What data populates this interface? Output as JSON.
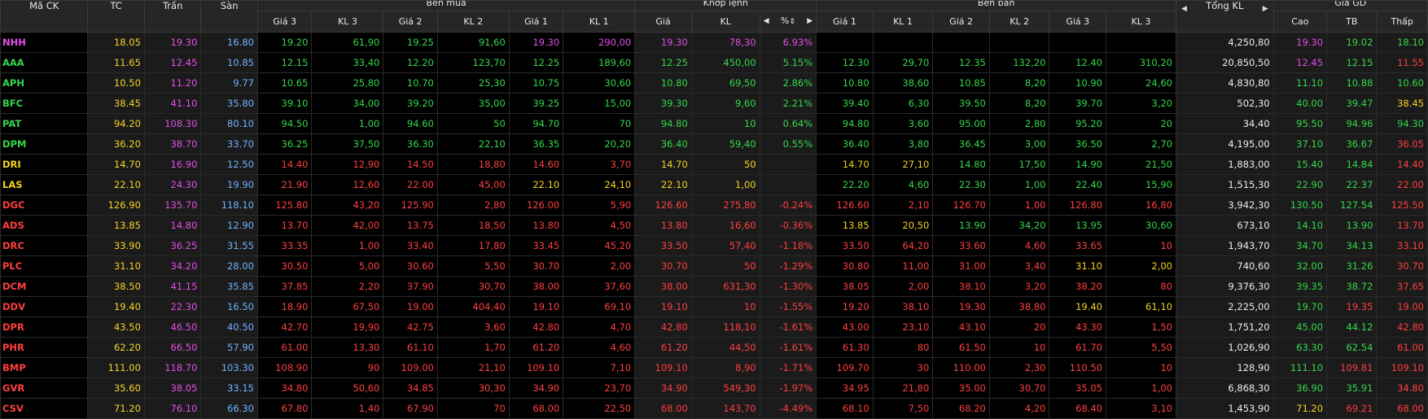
{
  "headers": {
    "symbol": "Mã CK",
    "ref": "TC",
    "ceil": "Trần",
    "floor": "Sàn",
    "buy_group": "Bên mua",
    "match_group": "Khớp lệnh",
    "sell_group": "Bên bán",
    "total": "Tổng KL",
    "range_group": "Giá GD",
    "buy_cols": [
      "Giá 3",
      "KL 3",
      "Giá 2",
      "KL 2",
      "Giá 1",
      "KL 1"
    ],
    "match_cols": [
      "Giá",
      "KL",
      "%"
    ],
    "sell_cols": [
      "Giá 1",
      "KL 1",
      "Giá 2",
      "KL 2",
      "Giá 3",
      "KL 3"
    ],
    "range_cols": [
      "Cao",
      "TB",
      "Thấp"
    ]
  },
  "icons": {
    "arrow_left": "◀",
    "arrow_right": "▶",
    "sort": "⇕"
  },
  "colors": {
    "up": "#33d84b",
    "down": "#ff3f3f",
    "reference": "#f5d323",
    "ceiling": "#e24ee8",
    "floor": "#6fb2ff"
  },
  "rows": [
    {
      "sym": "NHH",
      "tc": "18.05",
      "tran": "19.30",
      "san": "16.80",
      "b3": "19.20",
      "bk3": "61,90",
      "b2": "19.25",
      "bk2": "91,60",
      "b1": "19.30",
      "bk1": "290,00",
      "mp": "19.30",
      "mk": "78,30",
      "pct": "6.93%",
      "s1": "",
      "sk1": "",
      "s2": "",
      "sk2": "",
      "s3": "",
      "sk3": "",
      "tot": "4,250,80",
      "hi": "19.30",
      "tb": "19.02",
      "lo": "18.10",
      "c": {
        "sym": "ceil",
        "b3": "up",
        "b2": "up",
        "b1": "ceil",
        "m": "ceil",
        "s1": "up",
        "s2": "up",
        "s3": "up",
        "hi": "ceil",
        "tb": "up",
        "lo": "up"
      }
    },
    {
      "sym": "AAA",
      "tc": "11.65",
      "tran": "12.45",
      "san": "10.85",
      "b3": "12.15",
      "bk3": "33,40",
      "b2": "12.20",
      "bk2": "123,70",
      "b1": "12.25",
      "bk1": "189,60",
      "mp": "12.25",
      "mk": "450,00",
      "pct": "5.15%",
      "s1": "12.30",
      "sk1": "29,70",
      "s2": "12.35",
      "sk2": "132,20",
      "s3": "12.40",
      "sk3": "310,20",
      "tot": "20,850,50",
      "hi": "12.45",
      "tb": "12.15",
      "lo": "11.55",
      "c": {
        "sym": "up",
        "b3": "up",
        "b2": "up",
        "b1": "up",
        "m": "up",
        "s1": "up",
        "s2": "up",
        "s3": "up",
        "hi": "ceil",
        "tb": "up",
        "lo": "down"
      }
    },
    {
      "sym": "APH",
      "tc": "10.50",
      "tran": "11.20",
      "san": "9.77",
      "b3": "10.65",
      "bk3": "25,80",
      "b2": "10.70",
      "bk2": "25,30",
      "b1": "10.75",
      "bk1": "30,60",
      "mp": "10.80",
      "mk": "69,50",
      "pct": "2.86%",
      "s1": "10.80",
      "sk1": "38,60",
      "s2": "10.85",
      "sk2": "8,20",
      "s3": "10.90",
      "sk3": "24,60",
      "tot": "4,830,80",
      "hi": "11.10",
      "tb": "10.88",
      "lo": "10.60",
      "c": {
        "sym": "up",
        "b3": "up",
        "b2": "up",
        "b1": "up",
        "m": "up",
        "s1": "up",
        "s2": "up",
        "s3": "up",
        "hi": "up",
        "tb": "up",
        "lo": "up"
      }
    },
    {
      "sym": "BFC",
      "tc": "38.45",
      "tran": "41.10",
      "san": "35.80",
      "b3": "39.10",
      "bk3": "34,00",
      "b2": "39.20",
      "bk2": "35,00",
      "b1": "39.25",
      "bk1": "15,00",
      "mp": "39.30",
      "mk": "9,60",
      "pct": "2.21%",
      "s1": "39.40",
      "sk1": "6,30",
      "s2": "39.50",
      "sk2": "8,20",
      "s3": "39.70",
      "sk3": "3,20",
      "tot": "502,30",
      "hi": "40.00",
      "tb": "39.47",
      "lo": "38.45",
      "c": {
        "sym": "up",
        "b3": "up",
        "b2": "up",
        "b1": "up",
        "m": "up",
        "s1": "up",
        "s2": "up",
        "s3": "up",
        "hi": "up",
        "tb": "up",
        "lo": "ref"
      }
    },
    {
      "sym": "PAT",
      "tc": "94.20",
      "tran": "108.30",
      "san": "80.10",
      "b3": "94.50",
      "bk3": "1,00",
      "b2": "94.60",
      "bk2": "50",
      "b1": "94.70",
      "bk1": "70",
      "mp": "94.80",
      "mk": "10",
      "pct": "0.64%",
      "s1": "94.80",
      "sk1": "3,60",
      "s2": "95.00",
      "sk2": "2,80",
      "s3": "95.20",
      "sk3": "20",
      "tot": "34,40",
      "hi": "95.50",
      "tb": "94.96",
      "lo": "94.30",
      "c": {
        "sym": "up",
        "b3": "up",
        "b2": "up",
        "b1": "up",
        "m": "up",
        "s1": "up",
        "s2": "up",
        "s3": "up",
        "hi": "up",
        "tb": "up",
        "lo": "up"
      }
    },
    {
      "sym": "DPM",
      "tc": "36.20",
      "tran": "38.70",
      "san": "33.70",
      "b3": "36.25",
      "bk3": "37,50",
      "b2": "36.30",
      "bk2": "22,10",
      "b1": "36.35",
      "bk1": "20,20",
      "mp": "36.40",
      "mk": "59,40",
      "pct": "0.55%",
      "s1": "36.40",
      "sk1": "3,80",
      "s2": "36.45",
      "sk2": "3,00",
      "s3": "36.50",
      "sk3": "2,70",
      "tot": "4,195,00",
      "hi": "37.10",
      "tb": "36.67",
      "lo": "36.05",
      "c": {
        "sym": "up",
        "b3": "up",
        "b2": "up",
        "b1": "up",
        "m": "up",
        "s1": "up",
        "s2": "up",
        "s3": "up",
        "hi": "up",
        "tb": "up",
        "lo": "down"
      }
    },
    {
      "sym": "DRI",
      "tc": "14.70",
      "tran": "16.90",
      "san": "12.50",
      "b3": "14.40",
      "bk3": "12,90",
      "b2": "14.50",
      "bk2": "18,80",
      "b1": "14.60",
      "bk1": "3,70",
      "mp": "14.70",
      "mk": "50",
      "pct": "",
      "s1": "14.70",
      "sk1": "27,10",
      "s2": "14.80",
      "sk2": "17,50",
      "s3": "14.90",
      "sk3": "21,50",
      "tot": "1,883,00",
      "hi": "15.40",
      "tb": "14.84",
      "lo": "14.40",
      "c": {
        "sym": "ref",
        "b3": "down",
        "b2": "down",
        "b1": "down",
        "m": "ref",
        "s1": "ref",
        "s2": "up",
        "s3": "up",
        "hi": "up",
        "tb": "up",
        "lo": "down"
      }
    },
    {
      "sym": "LAS",
      "tc": "22.10",
      "tran": "24.30",
      "san": "19.90",
      "b3": "21.90",
      "bk3": "12,60",
      "b2": "22.00",
      "bk2": "45,00",
      "b1": "22.10",
      "bk1": "24,10",
      "mp": "22.10",
      "mk": "1,00",
      "pct": "",
      "s1": "22.20",
      "sk1": "4,60",
      "s2": "22.30",
      "sk2": "1,00",
      "s3": "22.40",
      "sk3": "15,90",
      "tot": "1,515,30",
      "hi": "22.90",
      "tb": "22.37",
      "lo": "22.00",
      "c": {
        "sym": "ref",
        "b3": "down",
        "b2": "down",
        "b1": "ref",
        "m": "ref",
        "s1": "up",
        "s2": "up",
        "s3": "up",
        "hi": "up",
        "tb": "up",
        "lo": "down"
      }
    },
    {
      "sym": "DGC",
      "tc": "126.90",
      "tran": "135.70",
      "san": "118.10",
      "b3": "125.80",
      "bk3": "43,20",
      "b2": "125.90",
      "bk2": "2,80",
      "b1": "126.00",
      "bk1": "5,90",
      "mp": "126.60",
      "mk": "275,80",
      "pct": "-0.24%",
      "s1": "126.60",
      "sk1": "2,10",
      "s2": "126.70",
      "sk2": "1,00",
      "s3": "126.80",
      "sk3": "16,80",
      "tot": "3,942,30",
      "hi": "130.50",
      "tb": "127.54",
      "lo": "125.50",
      "c": {
        "sym": "down",
        "b3": "down",
        "b2": "down",
        "b1": "down",
        "m": "down",
        "s1": "down",
        "s2": "down",
        "s3": "down",
        "hi": "up",
        "tb": "up",
        "lo": "down"
      }
    },
    {
      "sym": "ADS",
      "tc": "13.85",
      "tran": "14.80",
      "san": "12.90",
      "b3": "13.70",
      "bk3": "42,00",
      "b2": "13.75",
      "bk2": "18,50",
      "b1": "13.80",
      "bk1": "4,50",
      "mp": "13.80",
      "mk": "16,60",
      "pct": "-0.36%",
      "s1": "13.85",
      "sk1": "20,50",
      "s2": "13.90",
      "sk2": "34,20",
      "s3": "13.95",
      "sk3": "30,60",
      "tot": "673,10",
      "hi": "14.10",
      "tb": "13.90",
      "lo": "13.70",
      "c": {
        "sym": "down",
        "b3": "down",
        "b2": "down",
        "b1": "down",
        "m": "down",
        "s1": "ref",
        "s2": "up",
        "s3": "up",
        "hi": "up",
        "tb": "up",
        "lo": "down"
      }
    },
    {
      "sym": "DRC",
      "tc": "33.90",
      "tran": "36.25",
      "san": "31.55",
      "b3": "33.35",
      "bk3": "1,00",
      "b2": "33.40",
      "bk2": "17,80",
      "b1": "33.45",
      "bk1": "45,20",
      "mp": "33.50",
      "mk": "57,40",
      "pct": "-1.18%",
      "s1": "33.50",
      "sk1": "64,20",
      "s2": "33.60",
      "sk2": "4,60",
      "s3": "33.65",
      "sk3": "10",
      "tot": "1,943,70",
      "hi": "34.70",
      "tb": "34.13",
      "lo": "33.10",
      "c": {
        "sym": "down",
        "b3": "down",
        "b2": "down",
        "b1": "down",
        "m": "down",
        "s1": "down",
        "s2": "down",
        "s3": "down",
        "hi": "up",
        "tb": "up",
        "lo": "down"
      }
    },
    {
      "sym": "PLC",
      "tc": "31.10",
      "tran": "34.20",
      "san": "28.00",
      "b3": "30.50",
      "bk3": "5,00",
      "b2": "30.60",
      "bk2": "5,50",
      "b1": "30.70",
      "bk1": "2,00",
      "mp": "30.70",
      "mk": "50",
      "pct": "-1.29%",
      "s1": "30.80",
      "sk1": "11,00",
      "s2": "31.00",
      "sk2": "3,40",
      "s3": "31.10",
      "sk3": "2,00",
      "tot": "740,60",
      "hi": "32.00",
      "tb": "31.26",
      "lo": "30.70",
      "c": {
        "sym": "down",
        "b3": "down",
        "b2": "down",
        "b1": "down",
        "m": "down",
        "s1": "down",
        "s2": "down",
        "s3": "ref",
        "hi": "up",
        "tb": "up",
        "lo": "down"
      }
    },
    {
      "sym": "DCM",
      "tc": "38.50",
      "tran": "41.15",
      "san": "35.85",
      "b3": "37.85",
      "bk3": "2,20",
      "b2": "37.90",
      "bk2": "30,70",
      "b1": "38.00",
      "bk1": "37,60",
      "mp": "38.00",
      "mk": "631,30",
      "pct": "-1.30%",
      "s1": "38.05",
      "sk1": "2,00",
      "s2": "38.10",
      "sk2": "3,20",
      "s3": "38.20",
      "sk3": "80",
      "tot": "9,376,30",
      "hi": "39.35",
      "tb": "38.72",
      "lo": "37.65",
      "c": {
        "sym": "down",
        "b3": "down",
        "b2": "down",
        "b1": "down",
        "m": "down",
        "s1": "down",
        "s2": "down",
        "s3": "down",
        "hi": "up",
        "tb": "up",
        "lo": "down"
      }
    },
    {
      "sym": "DDV",
      "tc": "19.40",
      "tran": "22.30",
      "san": "16.50",
      "b3": "18.90",
      "bk3": "67,50",
      "b2": "19.00",
      "bk2": "404,40",
      "b1": "19.10",
      "bk1": "69,10",
      "mp": "19.10",
      "mk": "10",
      "pct": "-1.55%",
      "s1": "19.20",
      "sk1": "38,10",
      "s2": "19.30",
      "sk2": "38,80",
      "s3": "19.40",
      "sk3": "61,10",
      "tot": "2,225,00",
      "hi": "19.70",
      "tb": "19.35",
      "lo": "19.00",
      "c": {
        "sym": "down",
        "b3": "down",
        "b2": "down",
        "b1": "down",
        "m": "down",
        "s1": "down",
        "s2": "down",
        "s3": "ref",
        "hi": "up",
        "tb": "down",
        "lo": "down"
      }
    },
    {
      "sym": "DPR",
      "tc": "43.50",
      "tran": "46.50",
      "san": "40.50",
      "b3": "42.70",
      "bk3": "19,90",
      "b2": "42.75",
      "bk2": "3,60",
      "b1": "42.80",
      "bk1": "4,70",
      "mp": "42.80",
      "mk": "118,10",
      "pct": "-1.61%",
      "s1": "43.00",
      "sk1": "23,10",
      "s2": "43.10",
      "sk2": "20",
      "s3": "43.30",
      "sk3": "1,50",
      "tot": "1,751,20",
      "hi": "45.00",
      "tb": "44.12",
      "lo": "42.80",
      "c": {
        "sym": "down",
        "b3": "down",
        "b2": "down",
        "b1": "down",
        "m": "down",
        "s1": "down",
        "s2": "down",
        "s3": "down",
        "hi": "up",
        "tb": "up",
        "lo": "down"
      }
    },
    {
      "sym": "PHR",
      "tc": "62.20",
      "tran": "66.50",
      "san": "57.90",
      "b3": "61.00",
      "bk3": "13,30",
      "b2": "61.10",
      "bk2": "1,70",
      "b1": "61.20",
      "bk1": "4,60",
      "mp": "61.20",
      "mk": "44,50",
      "pct": "-1.61%",
      "s1": "61.30",
      "sk1": "80",
      "s2": "61.50",
      "sk2": "10",
      "s3": "61.70",
      "sk3": "5,50",
      "tot": "1,026,90",
      "hi": "63.30",
      "tb": "62.54",
      "lo": "61.00",
      "c": {
        "sym": "down",
        "b3": "down",
        "b2": "down",
        "b1": "down",
        "m": "down",
        "s1": "down",
        "s2": "down",
        "s3": "down",
        "hi": "up",
        "tb": "up",
        "lo": "down"
      }
    },
    {
      "sym": "BMP",
      "tc": "111.00",
      "tran": "118.70",
      "san": "103.30",
      "b3": "108.90",
      "bk3": "90",
      "b2": "109.00",
      "bk2": "21,10",
      "b1": "109.10",
      "bk1": "7,10",
      "mp": "109.10",
      "mk": "8,90",
      "pct": "-1.71%",
      "s1": "109.70",
      "sk1": "30",
      "s2": "110.00",
      "sk2": "2,30",
      "s3": "110.50",
      "sk3": "10",
      "tot": "128,90",
      "hi": "111.10",
      "tb": "109.81",
      "lo": "109.10",
      "c": {
        "sym": "down",
        "b3": "down",
        "b2": "down",
        "b1": "down",
        "m": "down",
        "s1": "down",
        "s2": "down",
        "s3": "down",
        "hi": "up",
        "tb": "down",
        "lo": "down"
      }
    },
    {
      "sym": "GVR",
      "tc": "35.60",
      "tran": "38.05",
      "san": "33.15",
      "b3": "34.80",
      "bk3": "50,60",
      "b2": "34.85",
      "bk2": "30,30",
      "b1": "34.90",
      "bk1": "23,70",
      "mp": "34.90",
      "mk": "549,30",
      "pct": "-1.97%",
      "s1": "34.95",
      "sk1": "21,80",
      "s2": "35.00",
      "sk2": "30,70",
      "s3": "35.05",
      "sk3": "1,00",
      "tot": "6,868,30",
      "hi": "36.90",
      "tb": "35.91",
      "lo": "34.80",
      "c": {
        "sym": "down",
        "b3": "down",
        "b2": "down",
        "b1": "down",
        "m": "down",
        "s1": "down",
        "s2": "down",
        "s3": "down",
        "hi": "up",
        "tb": "up",
        "lo": "down"
      }
    },
    {
      "sym": "CSV",
      "tc": "71.20",
      "tran": "76.10",
      "san": "66.30",
      "b3": "67.80",
      "bk3": "1,40",
      "b2": "67.90",
      "bk2": "70",
      "b1": "68.00",
      "bk1": "22,50",
      "mp": "68.00",
      "mk": "143,70",
      "pct": "-4.49%",
      "s1": "68.10",
      "sk1": "7,50",
      "s2": "68.20",
      "sk2": "4,20",
      "s3": "68.40",
      "sk3": "3,10",
      "tot": "1,453,90",
      "hi": "71.20",
      "tb": "69.21",
      "lo": "68.00",
      "c": {
        "sym": "down",
        "b3": "down",
        "b2": "down",
        "b1": "down",
        "m": "down",
        "s1": "down",
        "s2": "down",
        "s3": "down",
        "hi": "ref",
        "tb": "down",
        "lo": "down"
      }
    }
  ]
}
